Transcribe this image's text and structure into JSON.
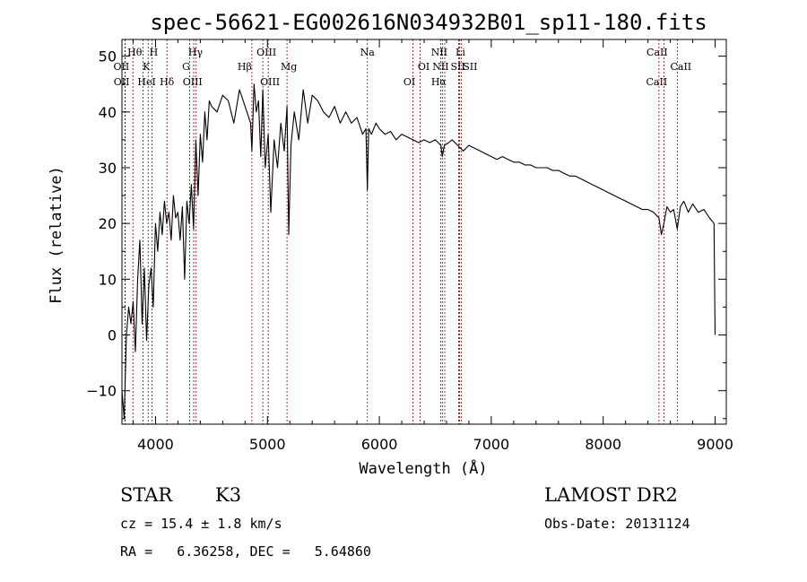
{
  "chart_data": {
    "type": "line",
    "title": "spec-56621-EG002616N034932B01_sp11-180.fits",
    "xlabel": "Wavelength (Å)",
    "ylabel": "Flux (relative)",
    "xlim": [
      3700,
      9100
    ],
    "ylim": [
      -16,
      53
    ],
    "xticks": [
      4000,
      5000,
      6000,
      7000,
      8000,
      9000
    ],
    "yticks": [
      -10,
      0,
      10,
      20,
      30,
      40,
      50
    ],
    "grid": false,
    "legend": "none",
    "series": [
      {
        "x": [
          3700,
          3720,
          3740,
          3760,
          3780,
          3800,
          3820,
          3840,
          3860,
          3880,
          3900,
          3920,
          3940,
          3960,
          3980,
          4000,
          4020,
          4040,
          4060,
          4080,
          4100,
          4120,
          4140,
          4160,
          4180,
          4200,
          4220,
          4240,
          4260,
          4280,
          4300,
          4320,
          4340,
          4360,
          4380,
          4400,
          4420,
          4440,
          4460,
          4480,
          4500,
          4550,
          4600,
          4650,
          4700,
          4750,
          4800,
          4850,
          4861,
          4880,
          4900,
          4920,
          4940,
          4959,
          4980,
          5007,
          5030,
          5060,
          5090,
          5120,
          5150,
          5175,
          5190,
          5210,
          5240,
          5280,
          5320,
          5360,
          5400,
          5450,
          5500,
          5550,
          5600,
          5650,
          5700,
          5750,
          5800,
          5850,
          5880,
          5893,
          5905,
          5930,
          5970,
          6000,
          6050,
          6100,
          6150,
          6200,
          6250,
          6300,
          6350,
          6400,
          6450,
          6500,
          6550,
          6563,
          6580,
          6620,
          6650,
          6700,
          6750,
          6800,
          6850,
          6900,
          6950,
          7000,
          7050,
          7100,
          7150,
          7200,
          7250,
          7300,
          7350,
          7400,
          7450,
          7500,
          7550,
          7600,
          7650,
          7700,
          7750,
          7800,
          7850,
          7900,
          7950,
          8000,
          8050,
          8100,
          8150,
          8200,
          8250,
          8300,
          8350,
          8400,
          8450,
          8498,
          8520,
          8542,
          8570,
          8600,
          8630,
          8662,
          8690,
          8720,
          8760,
          8800,
          8850,
          8900,
          8950,
          8990,
          9000
        ],
        "y": [
          -10,
          -15,
          0,
          5,
          2,
          6,
          -3,
          10,
          17,
          2,
          12,
          -1,
          9,
          12,
          5,
          20,
          15,
          22,
          18,
          24,
          20,
          22,
          17,
          25,
          21,
          22,
          17,
          23,
          10,
          24,
          20,
          27,
          19,
          35,
          25,
          36,
          31,
          40,
          35,
          42,
          41,
          40,
          43,
          42,
          38,
          44,
          41,
          38,
          33,
          45,
          40,
          42,
          32,
          44,
          30,
          36,
          22,
          35,
          30,
          38,
          33,
          41,
          18,
          34,
          40,
          35,
          44,
          38,
          43,
          42,
          40,
          39,
          41,
          38,
          40,
          38,
          39,
          36,
          37,
          26,
          37,
          36,
          38,
          37,
          36,
          36.5,
          35,
          36,
          35.5,
          35,
          34.5,
          35,
          34.5,
          35,
          34,
          32,
          34,
          34.5,
          35,
          34,
          33,
          34,
          33.5,
          33,
          32.5,
          32,
          31.5,
          32,
          31.5,
          31,
          31,
          30.5,
          30.5,
          30,
          30,
          30,
          29.5,
          29.5,
          29,
          28.5,
          28.5,
          28,
          27.5,
          27,
          26.5,
          26,
          25.5,
          25,
          24.5,
          24,
          23.5,
          23,
          22.5,
          22.5,
          22,
          21,
          18,
          20,
          23,
          22,
          22.5,
          19,
          23,
          24,
          22,
          23.5,
          22,
          22.5,
          21,
          20,
          0
        ]
      }
    ],
    "lines": [
      {
        "label": "Hθ",
        "x": 3798
      },
      {
        "label": "OII",
        "x": 3727
      },
      {
        "label": "OII",
        "x": 3729
      },
      {
        "label": "H",
        "x": 3968
      },
      {
        "label": "K",
        "x": 3934
      },
      {
        "label": "HeI",
        "x": 3889
      },
      {
        "label": "Hδ",
        "x": 4102
      },
      {
        "label": "Hγ",
        "x": 4341
      },
      {
        "label": "G",
        "x": 4305
      },
      {
        "label": "OIII",
        "x": 4363
      },
      {
        "label": "OIII",
        "x": 4959
      },
      {
        "label": "Hβ",
        "x": 4861
      },
      {
        "label": "OIII",
        "x": 5007
      },
      {
        "label": "Mg",
        "x": 5175
      },
      {
        "label": "Na",
        "x": 5893
      },
      {
        "label": "OI",
        "x": 6364
      },
      {
        "label": "OI",
        "x": 6300
      },
      {
        "label": "NII",
        "x": 6584
      },
      {
        "label": "NII",
        "x": 6548
      },
      {
        "label": "Hα",
        "x": 6563
      },
      {
        "label": "Li",
        "x": 6708
      },
      {
        "label": "SII",
        "x": 6717
      },
      {
        "label": "SII",
        "x": 6731
      },
      {
        "label": "CaII",
        "x": 8498
      },
      {
        "label": "CaII",
        "x": 8662
      },
      {
        "label": "CaII",
        "x": 8542
      }
    ]
  },
  "info": {
    "object": "STAR",
    "subclass": "K3",
    "survey": "LAMOST DR2",
    "cz": "cz = 15.4 ± 1.8 km/s",
    "obsdate": "Obs-Date: 20131124",
    "radec": "RA =   6.36258, DEC =   5.64860"
  },
  "colors": {
    "spectrum": "#000000",
    "line_markers": "#8b0000",
    "background": "#ffffff"
  }
}
